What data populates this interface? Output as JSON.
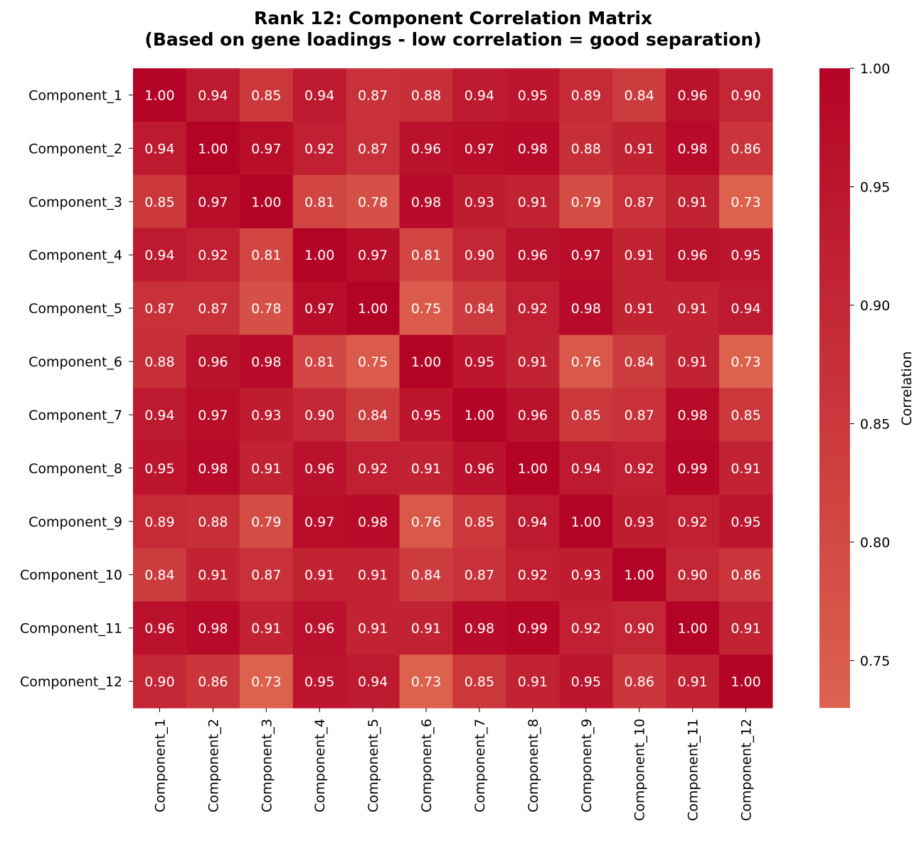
{
  "chart_data": {
    "type": "heatmap",
    "title": "Rank 12: Component Correlation Matrix",
    "subtitle": "(Based on gene loadings - low correlation = good separation)",
    "x_labels": [
      "Component_1",
      "Component_2",
      "Component_3",
      "Component_4",
      "Component_5",
      "Component_6",
      "Component_7",
      "Component_8",
      "Component_9",
      "Component_10",
      "Component_11",
      "Component_12"
    ],
    "y_labels": [
      "Component_1",
      "Component_2",
      "Component_3",
      "Component_4",
      "Component_5",
      "Component_6",
      "Component_7",
      "Component_8",
      "Component_9",
      "Component_10",
      "Component_11",
      "Component_12"
    ],
    "values": [
      [
        1.0,
        0.94,
        0.85,
        0.94,
        0.87,
        0.88,
        0.94,
        0.95,
        0.89,
        0.84,
        0.96,
        0.9
      ],
      [
        0.94,
        1.0,
        0.97,
        0.92,
        0.87,
        0.96,
        0.97,
        0.98,
        0.88,
        0.91,
        0.98,
        0.86
      ],
      [
        0.85,
        0.97,
        1.0,
        0.81,
        0.78,
        0.98,
        0.93,
        0.91,
        0.79,
        0.87,
        0.91,
        0.73
      ],
      [
        0.94,
        0.92,
        0.81,
        1.0,
        0.97,
        0.81,
        0.9,
        0.96,
        0.97,
        0.91,
        0.96,
        0.95
      ],
      [
        0.87,
        0.87,
        0.78,
        0.97,
        1.0,
        0.75,
        0.84,
        0.92,
        0.98,
        0.91,
        0.91,
        0.94
      ],
      [
        0.88,
        0.96,
        0.98,
        0.81,
        0.75,
        1.0,
        0.95,
        0.91,
        0.76,
        0.84,
        0.91,
        0.73
      ],
      [
        0.94,
        0.97,
        0.93,
        0.9,
        0.84,
        0.95,
        1.0,
        0.96,
        0.85,
        0.87,
        0.98,
        0.85
      ],
      [
        0.95,
        0.98,
        0.91,
        0.96,
        0.92,
        0.91,
        0.96,
        1.0,
        0.94,
        0.92,
        0.99,
        0.91
      ],
      [
        0.89,
        0.88,
        0.79,
        0.97,
        0.98,
        0.76,
        0.85,
        0.94,
        1.0,
        0.93,
        0.92,
        0.95
      ],
      [
        0.84,
        0.91,
        0.87,
        0.91,
        0.91,
        0.84,
        0.87,
        0.92,
        0.93,
        1.0,
        0.9,
        0.86
      ],
      [
        0.96,
        0.98,
        0.91,
        0.96,
        0.91,
        0.91,
        0.98,
        0.99,
        0.92,
        0.9,
        1.0,
        0.91
      ],
      [
        0.9,
        0.86,
        0.73,
        0.95,
        0.94,
        0.73,
        0.85,
        0.91,
        0.95,
        0.86,
        0.91,
        1.0
      ]
    ],
    "colorbar": {
      "label": "Correlation",
      "min": 0.73,
      "max": 1.0,
      "ticks": [
        1.0,
        0.95,
        0.9,
        0.85,
        0.8,
        0.75
      ],
      "tick_labels": [
        "1.00",
        "0.95",
        "0.90",
        "0.85",
        "0.80",
        "0.75"
      ],
      "color_low": "#dd624e",
      "color_high": "#b40426"
    },
    "value_format": "2 decimals",
    "cell_text_color": "#ffffff"
  }
}
